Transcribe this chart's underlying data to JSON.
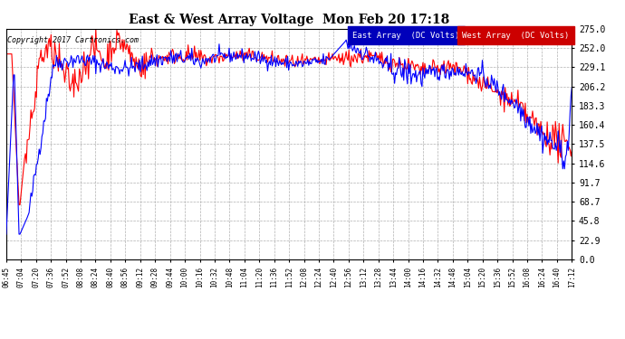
{
  "title": "East & West Array Voltage  Mon Feb 20 17:18",
  "copyright": "Copyright 2017 Cartronics.com",
  "legend_east": "East Array  (DC Volts)",
  "legend_west": "West Array  (DC Volts)",
  "east_color": "#0000ff",
  "west_color": "#ff0000",
  "east_legend_bg": "#0000bb",
  "west_legend_bg": "#cc0000",
  "background_color": "#ffffff",
  "plot_bg_color": "#ffffff",
  "grid_color": "#aaaaaa",
  "ylim": [
    0,
    275
  ],
  "yticks": [
    0.0,
    22.9,
    45.8,
    68.7,
    91.7,
    114.6,
    137.5,
    160.4,
    183.3,
    206.2,
    229.1,
    252.0,
    275.0
  ],
  "ytick_labels": [
    "0.0",
    "22.9",
    "45.8",
    "68.7",
    "91.7",
    "114.6",
    "137.5",
    "160.4",
    "183.3",
    "206.2",
    "229.1",
    "252.0",
    "275.0"
  ],
  "xtick_labels": [
    "06:45",
    "07:04",
    "07:20",
    "07:36",
    "07:52",
    "08:08",
    "08:24",
    "08:40",
    "08:56",
    "09:12",
    "09:28",
    "09:44",
    "10:00",
    "10:16",
    "10:32",
    "10:48",
    "11:04",
    "11:20",
    "11:36",
    "11:52",
    "12:08",
    "12:24",
    "12:40",
    "12:56",
    "13:12",
    "13:28",
    "13:44",
    "14:00",
    "14:16",
    "14:32",
    "14:48",
    "15:04",
    "15:20",
    "15:36",
    "15:52",
    "16:08",
    "16:24",
    "16:40",
    "17:12"
  ],
  "n_points": 620,
  "seed": 42
}
